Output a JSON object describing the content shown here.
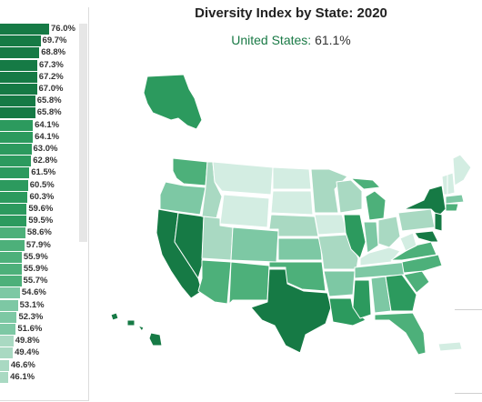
{
  "page": {
    "title": "Diversity Index by State: 2020",
    "national_label": "United States:",
    "national_value": "61.1%"
  },
  "colors": {
    "darkest": "#167a45",
    "dark": "#2c9a5e",
    "mid": "#4db07a",
    "light": "#7dc8a4",
    "lighter": "#a9d9c2",
    "lightest": "#d3ede2"
  },
  "chart_data": [
    {
      "type": "bar",
      "orientation": "horizontal",
      "values": [
        76.0,
        69.7,
        68.8,
        67.3,
        67.2,
        67.0,
        65.8,
        65.8,
        64.1,
        64.1,
        63.0,
        62.8,
        61.5,
        60.5,
        60.3,
        59.6,
        59.5,
        58.6,
        57.9,
        55.9,
        55.9,
        55.7,
        54.6,
        53.1,
        52.3,
        51.6,
        49.8,
        49.4,
        46.6,
        46.1
      ],
      "labels": [
        "76.0%",
        "69.7%",
        "68.8%",
        "67.3%",
        "67.2%",
        "67.0%",
        "65.8%",
        "65.8%",
        "64.1%",
        "64.1%",
        "63.0%",
        "62.8%",
        "61.5%",
        "60.5%",
        "60.3%",
        "59.6%",
        "59.5%",
        "58.6%",
        "57.9%",
        "55.9%",
        "55.9%",
        "55.7%",
        "54.6%",
        "53.1%",
        "52.3%",
        "51.6%",
        "49.8%",
        "49.4%",
        "46.6%",
        "46.1%"
      ],
      "xlim": [
        0,
        80
      ]
    },
    {
      "type": "choropleth",
      "title": "Diversity Index by State: 2020",
      "subtitle": "United States: 61.1%"
    }
  ]
}
